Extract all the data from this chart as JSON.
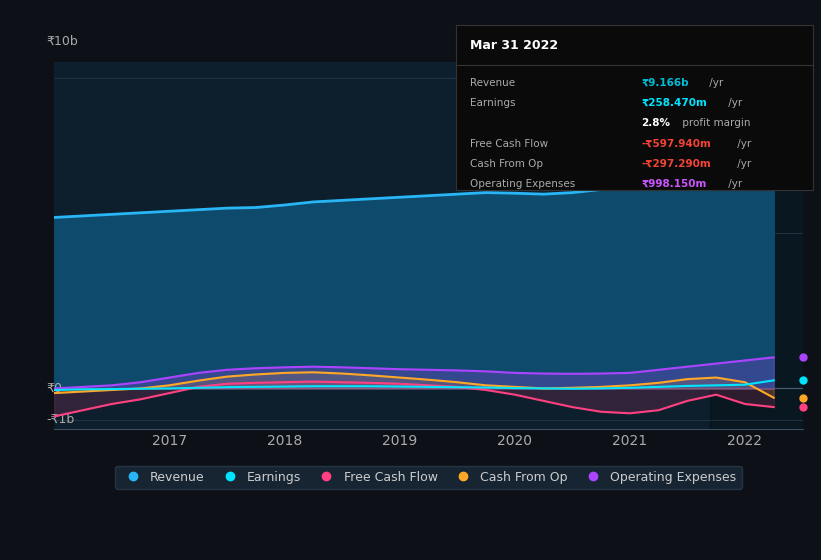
{
  "bg_outer": "#0d1117",
  "bg_chart": "#0d1f2d",
  "bg_tooltip": "#0a0a0a",
  "ylabel_top": "₹10b",
  "ylabel_zero": "₹0",
  "ylabel_neg": "-₹1b",
  "x_ticks": [
    2017,
    2018,
    2019,
    2020,
    2021,
    2022
  ],
  "xlim": [
    2016.0,
    2022.5
  ],
  "ylim": [
    -1300000000.0,
    10500000000.0
  ],
  "highlight_x_start": 2021.7,
  "series": {
    "Revenue": {
      "color": "#29b6f6",
      "fill_color": "#0d4a6b",
      "x": [
        2016.0,
        2016.25,
        2016.5,
        2016.75,
        2017.0,
        2017.25,
        2017.5,
        2017.75,
        2018.0,
        2018.25,
        2018.5,
        2018.75,
        2019.0,
        2019.25,
        2019.5,
        2019.75,
        2020.0,
        2020.25,
        2020.5,
        2020.75,
        2021.0,
        2021.25,
        2021.5,
        2021.75,
        2022.0,
        2022.25
      ],
      "y": [
        5500000000.0,
        5550000000.0,
        5600000000.0,
        5650000000.0,
        5700000000.0,
        5750000000.0,
        5800000000.0,
        5820000000.0,
        5900000000.0,
        6000000000.0,
        6050000000.0,
        6100000000.0,
        6150000000.0,
        6200000000.0,
        6250000000.0,
        6300000000.0,
        6280000000.0,
        6250000000.0,
        6300000000.0,
        6400000000.0,
        6600000000.0,
        7000000000.0,
        7600000000.0,
        8200000000.0,
        9000000000.0,
        9170000000.0
      ]
    },
    "Earnings": {
      "color": "#00e5ff",
      "x": [
        2016.0,
        2016.25,
        2016.5,
        2016.75,
        2017.0,
        2017.25,
        2017.5,
        2017.75,
        2018.0,
        2018.25,
        2018.5,
        2018.75,
        2019.0,
        2019.25,
        2019.5,
        2019.75,
        2020.0,
        2020.25,
        2020.5,
        2020.75,
        2021.0,
        2021.25,
        2021.5,
        2021.75,
        2022.0,
        2022.25
      ],
      "y": [
        -50000000.0,
        -30000000.0,
        -20000000.0,
        -10000000.0,
        0.0,
        20000000.0,
        40000000.0,
        50000000.0,
        60000000.0,
        70000000.0,
        70000000.0,
        70000000.0,
        60000000.0,
        50000000.0,
        40000000.0,
        30000000.0,
        10000000.0,
        0.0,
        -10000000.0,
        0.0,
        20000000.0,
        50000000.0,
        80000000.0,
        100000000.0,
        120000000.0,
        260000000.0
      ]
    },
    "FreeCashFlow": {
      "color": "#ff4081",
      "x": [
        2016.0,
        2016.25,
        2016.5,
        2016.75,
        2017.0,
        2017.25,
        2017.5,
        2017.75,
        2018.0,
        2018.25,
        2018.5,
        2018.75,
        2019.0,
        2019.25,
        2019.5,
        2019.75,
        2020.0,
        2020.25,
        2020.5,
        2020.75,
        2021.0,
        2021.25,
        2021.5,
        2021.75,
        2022.0,
        2022.25
      ],
      "y": [
        -900000000.0,
        -700000000.0,
        -500000000.0,
        -350000000.0,
        -150000000.0,
        50000000.0,
        150000000.0,
        180000000.0,
        200000000.0,
        220000000.0,
        200000000.0,
        180000000.0,
        150000000.0,
        100000000.0,
        50000000.0,
        -50000000.0,
        -200000000.0,
        -400000000.0,
        -600000000.0,
        -750000000.0,
        -800000000.0,
        -700000000.0,
        -400000000.0,
        -200000000.0,
        -500000000.0,
        -600000000.0
      ]
    },
    "CashFromOp": {
      "color": "#ffa726",
      "x": [
        2016.0,
        2016.25,
        2016.5,
        2016.75,
        2017.0,
        2017.25,
        2017.5,
        2017.75,
        2018.0,
        2018.25,
        2018.5,
        2018.75,
        2019.0,
        2019.25,
        2019.5,
        2019.75,
        2020.0,
        2020.25,
        2020.5,
        2020.75,
        2021.0,
        2021.25,
        2021.5,
        2021.75,
        2022.0,
        2022.25
      ],
      "y": [
        -150000000.0,
        -100000000.0,
        -50000000.0,
        0.0,
        100000000.0,
        250000000.0,
        380000000.0,
        450000000.0,
        500000000.0,
        520000000.0,
        480000000.0,
        420000000.0,
        350000000.0,
        280000000.0,
        200000000.0,
        100000000.0,
        50000000.0,
        0.0,
        20000000.0,
        50000000.0,
        100000000.0,
        180000000.0,
        300000000.0,
        350000000.0,
        200000000.0,
        -300000000.0
      ]
    },
    "OperatingExpenses": {
      "color": "#aa44ff",
      "x": [
        2016.0,
        2016.25,
        2016.5,
        2016.75,
        2017.0,
        2017.25,
        2017.5,
        2017.75,
        2018.0,
        2018.25,
        2018.5,
        2018.75,
        2019.0,
        2019.25,
        2019.5,
        2019.75,
        2020.0,
        2020.25,
        2020.5,
        2020.75,
        2021.0,
        2021.25,
        2021.5,
        2021.75,
        2022.0,
        2022.25
      ],
      "y": [
        0.0,
        50000000.0,
        100000000.0,
        200000000.0,
        350000000.0,
        500000000.0,
        600000000.0,
        650000000.0,
        680000000.0,
        700000000.0,
        680000000.0,
        650000000.0,
        620000000.0,
        600000000.0,
        580000000.0,
        550000000.0,
        500000000.0,
        480000000.0,
        470000000.0,
        480000000.0,
        500000000.0,
        600000000.0,
        700000000.0,
        800000000.0,
        900000000.0,
        1000000000.0
      ]
    }
  },
  "legend": [
    {
      "label": "Revenue",
      "color": "#29b6f6"
    },
    {
      "label": "Earnings",
      "color": "#00e5ff"
    },
    {
      "label": "Free Cash Flow",
      "color": "#ff4081"
    },
    {
      "label": "Cash From Op",
      "color": "#ffa726"
    },
    {
      "label": "Operating Expenses",
      "color": "#aa44ff"
    }
  ],
  "tooltip": {
    "title": "Mar 31 2022",
    "rows": [
      {
        "label": "Revenue",
        "value": "₹9.166b",
        "suffix": " /yr",
        "val_color": "#00bcd4"
      },
      {
        "label": "Earnings",
        "value": "₹258.470m",
        "suffix": " /yr",
        "val_color": "#00e5ff"
      },
      {
        "label": "",
        "value": "2.8%",
        "suffix": " profit margin",
        "val_color": "#ffffff"
      },
      {
        "label": "Free Cash Flow",
        "value": "-₹597.940m",
        "suffix": " /yr",
        "val_color": "#f44336"
      },
      {
        "label": "Cash From Op",
        "value": "-₹297.290m",
        "suffix": " /yr",
        "val_color": "#f44336"
      },
      {
        "label": "Operating Expenses",
        "value": "₹998.150m",
        "suffix": " /yr",
        "val_color": "#cc55ff"
      }
    ]
  }
}
